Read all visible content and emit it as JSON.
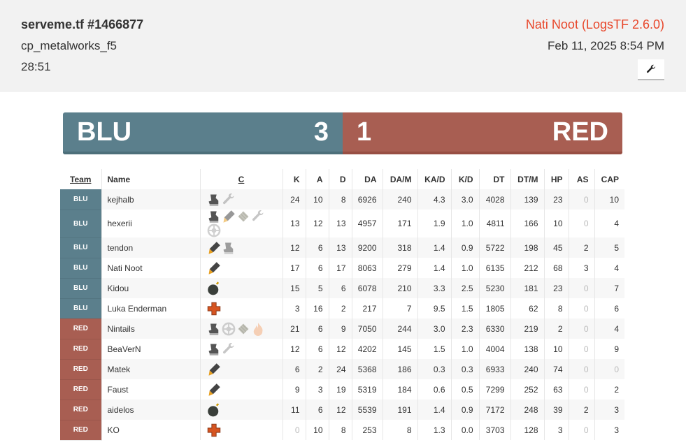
{
  "header": {
    "title": "serveme.tf #1466877",
    "map": "cp_metalworks_f5",
    "duration": "28:51",
    "uploader": "Nati Noot (LogsTF 2.6.0)",
    "date": "Feb 11, 2025 8:54 PM",
    "tools_icon": "wrench-icon"
  },
  "score": {
    "blu_label": "BLU",
    "blu_score": "3",
    "red_score": "1",
    "red_label": "RED",
    "blu_color": "#5b7f8c",
    "red_color": "#a85e52"
  },
  "columns": [
    "Team",
    "Name",
    "C",
    "K",
    "A",
    "D",
    "DA",
    "DA/M",
    "KA/D",
    "K/D",
    "DT",
    "DT/M",
    "HP",
    "AS",
    "CAP"
  ],
  "players": [
    {
      "team": "BLU",
      "name": "kejhalb",
      "classes": [
        [
          "scout",
          1
        ],
        [
          "engineer",
          0
        ]
      ],
      "stats": [
        "24",
        "10",
        "8",
        "6926",
        "240",
        "4.3",
        "3.0",
        "4028",
        "139",
        "23",
        "0",
        "10"
      ]
    },
    {
      "team": "BLU",
      "name": "hexerii",
      "classes": [
        [
          "scout",
          1
        ],
        [
          "soldier",
          0
        ],
        [
          "heavy",
          0
        ],
        [
          "engineer",
          0
        ],
        [
          "sniper",
          0
        ]
      ],
      "stats": [
        "13",
        "12",
        "13",
        "4957",
        "171",
        "1.9",
        "1.0",
        "4811",
        "166",
        "10",
        "0",
        "4"
      ]
    },
    {
      "team": "BLU",
      "name": "tendon",
      "classes": [
        [
          "soldier",
          1
        ],
        [
          "scout",
          0
        ]
      ],
      "stats": [
        "12",
        "6",
        "13",
        "9200",
        "318",
        "1.4",
        "0.9",
        "5722",
        "198",
        "45",
        "2",
        "5"
      ]
    },
    {
      "team": "BLU",
      "name": "Nati Noot",
      "classes": [
        [
          "soldier",
          1
        ]
      ],
      "stats": [
        "17",
        "6",
        "17",
        "8063",
        "279",
        "1.4",
        "1.0",
        "6135",
        "212",
        "68",
        "3",
        "4"
      ]
    },
    {
      "team": "BLU",
      "name": "Kidou",
      "classes": [
        [
          "demoman",
          1
        ]
      ],
      "stats": [
        "15",
        "5",
        "6",
        "6078",
        "210",
        "3.3",
        "2.5",
        "5230",
        "181",
        "23",
        "0",
        "7"
      ]
    },
    {
      "team": "BLU",
      "name": "Luka Enderman",
      "classes": [
        [
          "medic",
          1
        ]
      ],
      "stats": [
        "3",
        "16",
        "2",
        "217",
        "7",
        "9.5",
        "1.5",
        "1805",
        "62",
        "8",
        "0",
        "6"
      ]
    },
    {
      "team": "RED",
      "name": "Nintails",
      "classes": [
        [
          "scout",
          1
        ],
        [
          "sniper",
          0
        ],
        [
          "heavy",
          0
        ],
        [
          "pyro",
          0
        ]
      ],
      "stats": [
        "21",
        "6",
        "9",
        "7050",
        "244",
        "3.0",
        "2.3",
        "6330",
        "219",
        "2",
        "0",
        "4"
      ]
    },
    {
      "team": "RED",
      "name": "BeaVerN",
      "classes": [
        [
          "scout",
          1
        ],
        [
          "engineer",
          0
        ]
      ],
      "stats": [
        "12",
        "6",
        "12",
        "4202",
        "145",
        "1.5",
        "1.0",
        "4004",
        "138",
        "10",
        "0",
        "9"
      ]
    },
    {
      "team": "RED",
      "name": "Matek",
      "classes": [
        [
          "soldier",
          1
        ]
      ],
      "stats": [
        "6",
        "2",
        "24",
        "5368",
        "186",
        "0.3",
        "0.3",
        "6933",
        "240",
        "74",
        "0",
        "0"
      ]
    },
    {
      "team": "RED",
      "name": "Faust",
      "classes": [
        [
          "soldier",
          1
        ]
      ],
      "stats": [
        "9",
        "3",
        "19",
        "5319",
        "184",
        "0.6",
        "0.5",
        "7299",
        "252",
        "63",
        "0",
        "2"
      ]
    },
    {
      "team": "RED",
      "name": "aidelos",
      "classes": [
        [
          "demoman",
          1
        ]
      ],
      "stats": [
        "11",
        "6",
        "12",
        "5539",
        "191",
        "1.4",
        "0.9",
        "7172",
        "248",
        "39",
        "2",
        "3"
      ]
    },
    {
      "team": "RED",
      "name": "KO",
      "classes": [
        [
          "medic",
          1
        ]
      ],
      "stats": [
        "0",
        "10",
        "8",
        "253",
        "8",
        "1.3",
        "0.0",
        "3703",
        "128",
        "3",
        "0",
        "3"
      ]
    }
  ]
}
